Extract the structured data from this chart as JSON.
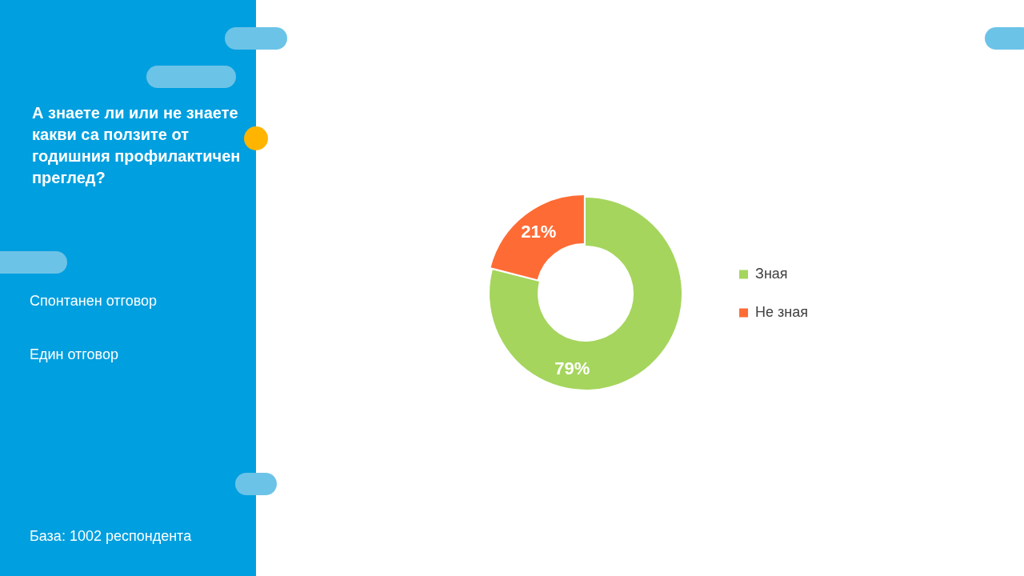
{
  "chart_data": {
    "type": "donut",
    "title": "А знаете ли или не знаете какви са ползите от годишния профилактичен преглед?",
    "categories": [
      "Зная",
      "Не зная"
    ],
    "values": [
      79,
      21
    ],
    "colors": [
      "#a5d55d",
      "#ff6b35"
    ],
    "value_labels": [
      "79%",
      "21%"
    ],
    "legend": "right",
    "annotations": [
      "Спонтанен отговор",
      "Един отговор",
      "База:  1002 респондента"
    ]
  }
}
